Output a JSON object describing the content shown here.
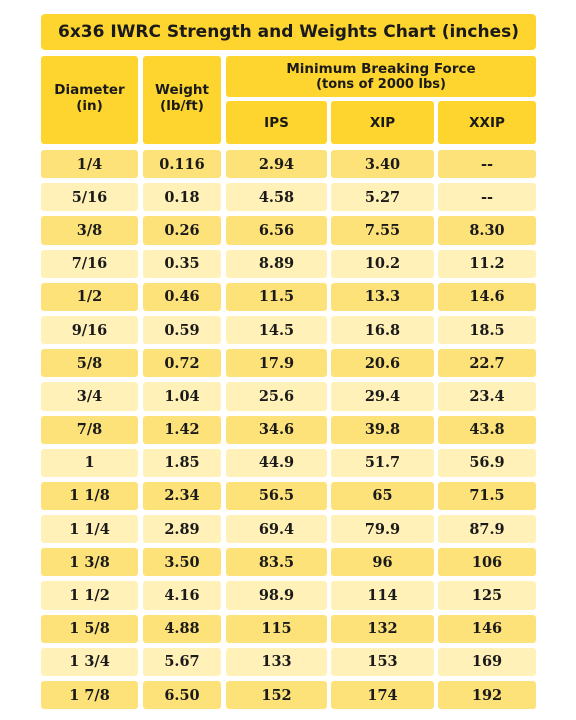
{
  "title": "6x36 IWRC Strength and Weights Chart (inches)",
  "headers": {
    "diameter": [
      "Diameter",
      "(in)"
    ],
    "weight": [
      "Weight",
      "(lb/ft)"
    ],
    "mbf": [
      "Minimum Breaking Force",
      "(tons of 2000 lbs)"
    ],
    "ips": "IPS",
    "xip": "XIP",
    "xxip": "XXIP"
  },
  "rows": [
    {
      "diameter": "1/4",
      "weight": "0.116",
      "ips": "2.94",
      "xip": "3.40",
      "xxip": "--"
    },
    {
      "diameter": "5/16",
      "weight": "0.18",
      "ips": "4.58",
      "xip": "5.27",
      "xxip": "--"
    },
    {
      "diameter": "3/8",
      "weight": "0.26",
      "ips": "6.56",
      "xip": "7.55",
      "xxip": "8.30"
    },
    {
      "diameter": "7/16",
      "weight": "0.35",
      "ips": "8.89",
      "xip": "10.2",
      "xxip": "11.2"
    },
    {
      "diameter": "1/2",
      "weight": "0.46",
      "ips": "11.5",
      "xip": "13.3",
      "xxip": "14.6"
    },
    {
      "diameter": "9/16",
      "weight": "0.59",
      "ips": "14.5",
      "xip": "16.8",
      "xxip": "18.5"
    },
    {
      "diameter": "5/8",
      "weight": "0.72",
      "ips": "17.9",
      "xip": "20.6",
      "xxip": "22.7"
    },
    {
      "diameter": "3/4",
      "weight": "1.04",
      "ips": "25.6",
      "xip": "29.4",
      "xxip": "23.4"
    },
    {
      "diameter": "7/8",
      "weight": "1.42",
      "ips": "34.6",
      "xip": "39.8",
      "xxip": "43.8"
    },
    {
      "diameter": "1",
      "weight": "1.85",
      "ips": "44.9",
      "xip": "51.7",
      "xxip": "56.9"
    },
    {
      "diameter": "1 1/8",
      "weight": "2.34",
      "ips": "56.5",
      "xip": "65",
      "xxip": "71.5"
    },
    {
      "diameter": "1 1/4",
      "weight": "2.89",
      "ips": "69.4",
      "xip": "79.9",
      "xxip": "87.9"
    },
    {
      "diameter": "1 3/8",
      "weight": "3.50",
      "ips": "83.5",
      "xip": "96",
      "xxip": "106"
    },
    {
      "diameter": "1 1/2",
      "weight": "4.16",
      "ips": "98.9",
      "xip": "114",
      "xxip": "125"
    },
    {
      "diameter": "1 5/8",
      "weight": "4.88",
      "ips": "115",
      "xip": "132",
      "xxip": "146"
    },
    {
      "diameter": "1 3/4",
      "weight": "5.67",
      "ips": "133",
      "xip": "153",
      "xxip": "169"
    },
    {
      "diameter": "1 7/8",
      "weight": "6.50",
      "ips": "152",
      "xip": "174",
      "xxip": "192"
    }
  ],
  "colors": {
    "header": "#fdd52e",
    "row_dark": "#fde27a",
    "row_light": "#fff1b8",
    "text": "#1a1a1a"
  }
}
